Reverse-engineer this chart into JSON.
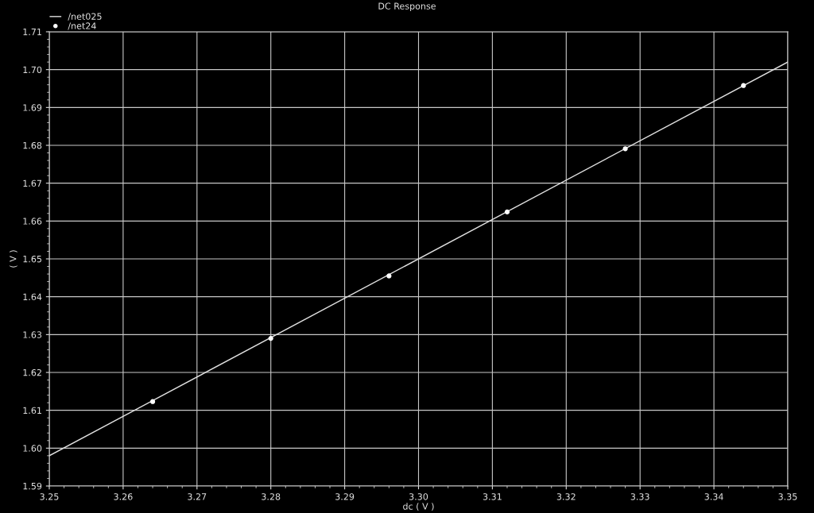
{
  "chart_data": {
    "type": "line",
    "title": "DC Response",
    "xlabel": "dc ( V )",
    "ylabel": "( V )",
    "series": [
      {
        "name": "/net025",
        "color": "#e0e0e0",
        "marker": "none",
        "x": [
          3.25,
          3.35
        ],
        "values": [
          1.598,
          1.702
        ]
      },
      {
        "name": "/net24",
        "type": "scatter",
        "color": "#ffffff",
        "marker": "circle",
        "x": [
          3.264,
          3.28,
          3.296,
          3.312,
          3.328,
          3.344
        ],
        "values": [
          1.6123,
          1.629,
          1.6455,
          1.6624,
          1.6791,
          1.6958
        ]
      }
    ],
    "xlim": [
      3.25,
      3.35
    ],
    "xticks": [
      {
        "value": 3.25,
        "label": "3.25"
      },
      {
        "value": 3.26,
        "label": "3.26"
      },
      {
        "value": 3.27,
        "label": "3.27"
      },
      {
        "value": 3.28,
        "label": "3.28"
      },
      {
        "value": 3.29,
        "label": "3.29"
      },
      {
        "value": 3.3,
        "label": "3.30"
      },
      {
        "value": 3.31,
        "label": "3.31"
      },
      {
        "value": 3.32,
        "label": "3.32"
      },
      {
        "value": 3.33,
        "label": "3.33"
      },
      {
        "value": 3.34,
        "label": "3.34"
      },
      {
        "value": 3.35,
        "label": "3.35"
      }
    ],
    "ylim": [
      1.59,
      1.71
    ],
    "yticks": [
      {
        "value": 1.59,
        "label": "1.59"
      },
      {
        "value": 1.6,
        "label": "1.60"
      },
      {
        "value": 1.61,
        "label": "1.61"
      },
      {
        "value": 1.62,
        "label": "1.62"
      },
      {
        "value": 1.63,
        "label": "1.63"
      },
      {
        "value": 1.64,
        "label": "1.64"
      },
      {
        "value": 1.65,
        "label": "1.65"
      },
      {
        "value": 1.66,
        "label": "1.66"
      },
      {
        "value": 1.67,
        "label": "1.67"
      },
      {
        "value": 1.68,
        "label": "1.68"
      },
      {
        "value": 1.69,
        "label": "1.69"
      },
      {
        "value": 1.7,
        "label": "1.70"
      },
      {
        "value": 1.71,
        "label": "1.71"
      }
    ],
    "grid": true,
    "legend": "top left"
  }
}
